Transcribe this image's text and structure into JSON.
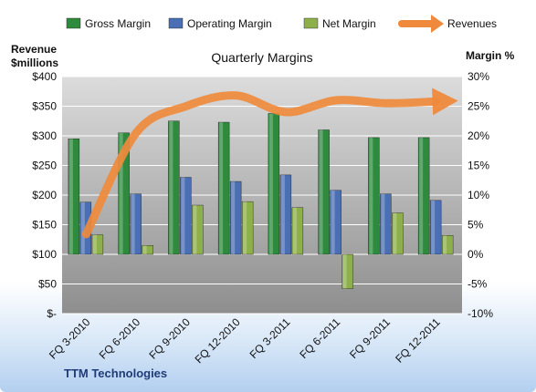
{
  "chart_data": {
    "type": "bar",
    "title": "Quarterly Margins",
    "footer": "TTM Technologies",
    "categories": [
      "FQ 3-2010",
      "FQ 6-2010",
      "FQ 9-2010",
      "FQ 12-2010",
      "FQ 3-2011",
      "FQ 6-2011",
      "FQ 9-2011",
      "FQ 12-2011"
    ],
    "left_axis": {
      "title_line1": "Revenue",
      "title_line2": "$millions",
      "ylim": [
        0,
        400
      ],
      "ticks": [
        0,
        50,
        100,
        150,
        200,
        250,
        300,
        350,
        400
      ],
      "tick_labels": [
        "$-",
        "$50",
        "$100",
        "$150",
        "$200",
        "$250",
        "$300",
        "$350",
        "$400"
      ]
    },
    "right_axis": {
      "title": "Margin  %",
      "ylim": [
        -10,
        30
      ],
      "ticks": [
        -10,
        -5,
        0,
        5,
        10,
        15,
        20,
        25,
        30
      ],
      "tick_labels": [
        "-10%",
        "-5%",
        "0%",
        "5%",
        "10%",
        "15%",
        "20%",
        "25%",
        "30%"
      ]
    },
    "series": [
      {
        "name": "Gross Margin",
        "axis": "right",
        "kind": "bar",
        "color": "#2e8b3e",
        "values": [
          19.5,
          20.5,
          22.5,
          22.3,
          23.8,
          21.0,
          19.7,
          19.7
        ]
      },
      {
        "name": "Operating Margin",
        "axis": "right",
        "kind": "bar",
        "color": "#4a6fb5",
        "values": [
          8.8,
          10.2,
          13.0,
          12.3,
          13.4,
          10.8,
          10.2,
          9.1
        ]
      },
      {
        "name": "Net Margin",
        "axis": "right",
        "kind": "bar",
        "color": "#8db04a",
        "values": [
          3.3,
          1.5,
          8.3,
          8.9,
          7.9,
          -5.8,
          7.0,
          3.2
        ]
      },
      {
        "name": "Revenues",
        "axis": "left",
        "kind": "line",
        "color": "#ef8a3c",
        "values": [
          134,
          305,
          350,
          368,
          340,
          360,
          355,
          358
        ]
      }
    ],
    "grid": true,
    "legend": "top"
  }
}
